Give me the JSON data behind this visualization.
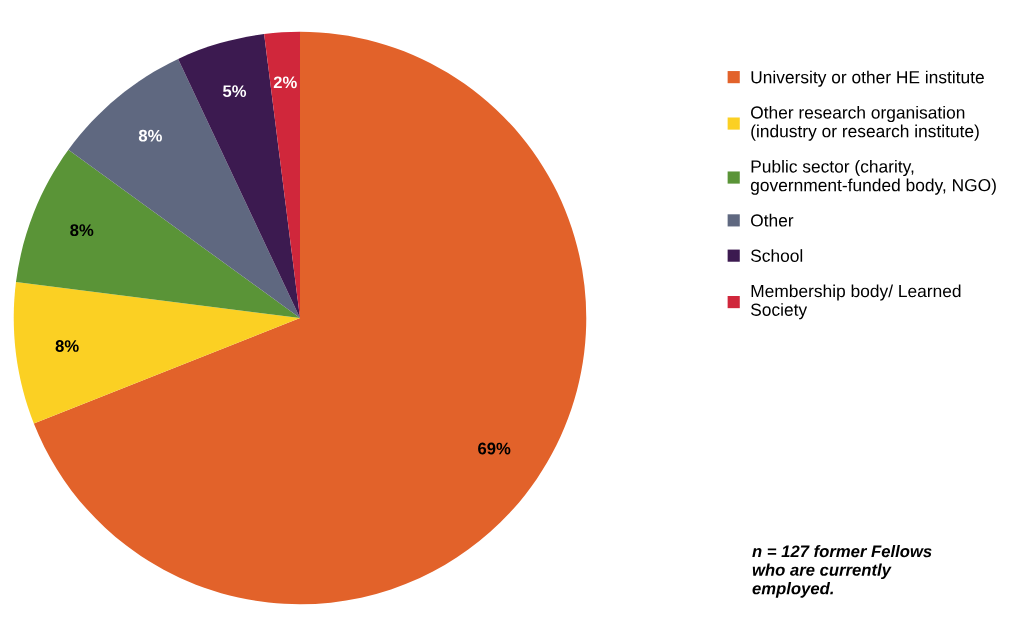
{
  "chart_data": {
    "type": "pie",
    "categories": [
      "University or other HE institute",
      "Other research organisation\n(industry or research institute)",
      "Public sector (charity,\ngovernment-funded body, NGO)",
      "Other",
      "School",
      "Membership body/ Learned\nSociety"
    ],
    "values": [
      69,
      8,
      8,
      8,
      5,
      2
    ],
    "colors": [
      "#e2622a",
      "#fbd023",
      "#5a9437",
      "#5f6880",
      "#3c1a50",
      "#d0273b"
    ],
    "value_labels": [
      "69%",
      "8%",
      "8%",
      "8%",
      "5%",
      "2%"
    ],
    "legend": "right",
    "annotations": [
      "n = 127 former Fellows\nwho are currently\nemployed."
    ]
  }
}
